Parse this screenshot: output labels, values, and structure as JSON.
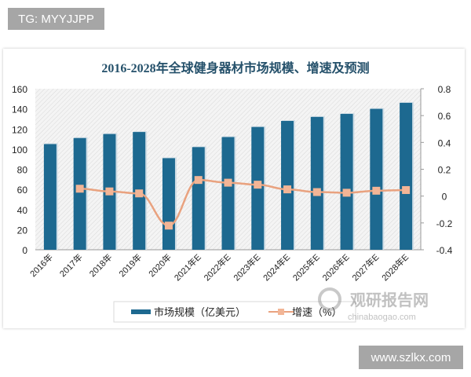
{
  "badges": {
    "top_left": "TG: MYYJJPP",
    "bottom_right": "www.szlkx.com"
  },
  "watermark": {
    "cn": "观研报告网",
    "en": "chinabaogao.com"
  },
  "colors": {
    "bar": "#1d6990",
    "line": "#e9a27f",
    "marker": "#f2b596",
    "title": "#24506a"
  },
  "chart_data": {
    "type": "bar+line",
    "title": "2016-2028年全球健身器材市场规模、增速及预测",
    "categories": [
      "2016年",
      "2017年",
      "2018年",
      "2019年",
      "2020年",
      "2021年E",
      "2022年E",
      "2023年E",
      "2024年E",
      "2025年E",
      "2026年E",
      "2027年E",
      "2028年E"
    ],
    "series": [
      {
        "name": "市场规模（亿美元）",
        "type": "bar",
        "axis": "left",
        "values": [
          105,
          111,
          115,
          117,
          91,
          102,
          112,
          122,
          128,
          132,
          135,
          140,
          146
        ]
      },
      {
        "name": "增速（%）",
        "type": "line",
        "axis": "right",
        "values": [
          null,
          0.055,
          0.035,
          0.02,
          -0.22,
          0.12,
          0.1,
          0.085,
          0.05,
          0.03,
          0.025,
          0.04,
          0.045
        ]
      }
    ],
    "y_left": {
      "range": [
        0,
        160
      ],
      "ticks": [
        "0",
        "20",
        "40",
        "60",
        "80",
        "100",
        "120",
        "140",
        "160"
      ]
    },
    "y_right": {
      "range": [
        -0.4,
        0.8
      ],
      "ticks": [
        "-0.4",
        "-0.2",
        "0",
        "0.2",
        "0.4",
        "0.6",
        "0.8"
      ]
    },
    "grid": false,
    "legend": "bottom"
  }
}
